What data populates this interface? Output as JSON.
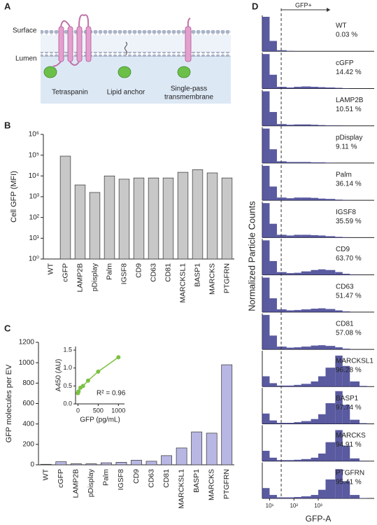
{
  "panels": [
    "A",
    "B",
    "C",
    "D"
  ],
  "diagram": {
    "surface": "Surface",
    "lumen": "Lumen",
    "labels": [
      "Tetraspanin",
      "Lipid anchor",
      "Single-pass",
      "transmembrane"
    ]
  },
  "chart_data": [
    {
      "type": "bar",
      "ylabel": "Cell  GFP  (MFI)",
      "categories": [
        "WT",
        "cGFP",
        "LAMP2B",
        "pDisplay",
        "Palm",
        "IGSF8",
        "CD9",
        "CD63",
        "CD81",
        "MARCKSL1",
        "BASP1",
        "MARCKS",
        "PTGFRN"
      ],
      "values": [
        1,
        90000,
        3700,
        1600,
        10000,
        7000,
        8000,
        8000,
        8000,
        15000,
        20000,
        14000,
        8000
      ],
      "color": "#c8c8c8",
      "yscale": "log",
      "ylim": [
        1,
        1000000
      ],
      "yticks": [
        {
          "value": 1,
          "label": "10⁰"
        },
        {
          "value": 10,
          "label": "10¹"
        },
        {
          "value": 100,
          "label": "10²"
        },
        {
          "value": 1000,
          "label": "10³"
        },
        {
          "value": 10000,
          "label": "10⁴"
        },
        {
          "value": 100000,
          "label": "10⁵"
        },
        {
          "value": 1000000,
          "label": "10⁶"
        }
      ]
    },
    {
      "type": "bar",
      "ylabel": "GFP molecules per EV",
      "categories": [
        "WT",
        "cGFP",
        "LAMP2B",
        "pDisplay",
        "Palm",
        "IGSF8",
        "CD9",
        "CD63",
        "CD81",
        "MARCKSL1",
        "BASP1",
        "MARCKS",
        "PTGFRN"
      ],
      "values": [
        5,
        30,
        10,
        10,
        20,
        25,
        45,
        35,
        90,
        165,
        322,
        310,
        980
      ],
      "color": "#b8b6e3",
      "ylim": [
        0,
        1200
      ],
      "yticks": [
        0,
        200,
        400,
        600,
        800,
        1000,
        1200
      ]
    },
    {
      "type": "line",
      "xlabel": "GFP (pg/mL)",
      "ylabel": "A450 (AU)",
      "annotation": "R² = 0.96",
      "x": [
        0,
        15,
        60,
        125,
        250,
        500,
        1000
      ],
      "values": [
        0.3,
        0.35,
        0.45,
        0.5,
        0.65,
        0.9,
        1.3
      ],
      "color": "#7cc142",
      "xlim": [
        -60,
        1150
      ],
      "ylim": [
        0,
        1.6
      ],
      "xticks": [
        0,
        500,
        1000
      ],
      "yticks": [
        {
          "value": 0,
          "label": "0.0"
        },
        {
          "value": 0.5,
          "label": "0.5"
        },
        {
          "value": 1,
          "label": "1.0"
        },
        {
          "value": 1.5,
          "label": "1.5"
        }
      ]
    },
    {
      "type": "histogram",
      "xlabel": "GFP-A",
      "ylabel": "Normalized Particle Counts",
      "gate": 30,
      "gate_label": "GFP+",
      "xscale": "log",
      "xlim": [
        5,
        200000
      ],
      "xticks": [
        {
          "value": 10,
          "label": "10¹"
        },
        {
          "value": 100,
          "label": "10²"
        },
        {
          "value": 1000,
          "label": "10³"
        }
      ],
      "ylim": [
        0,
        100
      ],
      "color": "#3d3d8f",
      "bins": [
        5,
        10,
        20,
        50,
        100,
        200,
        500,
        1000,
        2000,
        5000,
        10000,
        20000,
        50000,
        100000,
        200000
      ],
      "series": [
        {
          "name": "WT",
          "annotation": "0.03 %",
          "values": [
            100,
            30,
            3,
            1,
            0,
            0,
            0,
            0,
            0,
            0,
            0,
            0,
            0,
            0
          ]
        },
        {
          "name": "cGFP",
          "annotation": "14.42 %",
          "values": [
            100,
            40,
            5,
            3,
            5,
            6,
            5,
            4,
            3,
            2,
            1,
            0,
            0,
            0
          ]
        },
        {
          "name": "LAMP2B",
          "annotation": "10.51 %",
          "values": [
            100,
            40,
            5,
            3,
            4,
            4,
            3,
            2,
            1,
            1,
            0,
            0,
            0,
            0
          ]
        },
        {
          "name": "pDisplay",
          "annotation": "9.11 %",
          "values": [
            100,
            40,
            5,
            3,
            3,
            3,
            2,
            2,
            1,
            0,
            0,
            0,
            0,
            0
          ]
        },
        {
          "name": "Palm",
          "annotation": "36.14 %",
          "values": [
            100,
            40,
            8,
            6,
            8,
            8,
            7,
            5,
            4,
            2,
            1,
            0,
            0,
            0
          ]
        },
        {
          "name": "IGSF8",
          "annotation": "35.59 %",
          "values": [
            100,
            40,
            8,
            6,
            8,
            8,
            7,
            6,
            4,
            2,
            1,
            0,
            0,
            0
          ]
        },
        {
          "name": "CD9",
          "annotation": "63.70 %",
          "values": [
            100,
            40,
            8,
            5,
            6,
            10,
            14,
            16,
            14,
            8,
            3,
            1,
            0,
            0
          ]
        },
        {
          "name": "CD63",
          "annotation": "51.47 %",
          "values": [
            100,
            40,
            8,
            5,
            6,
            8,
            10,
            11,
            9,
            5,
            2,
            0,
            0,
            0
          ]
        },
        {
          "name": "CD81",
          "annotation": "57.08 %",
          "values": [
            100,
            40,
            8,
            5,
            6,
            8,
            11,
            12,
            10,
            6,
            2,
            0,
            0,
            0
          ]
        },
        {
          "name": "MARCKSL1",
          "annotation": "96.28 %",
          "values": [
            30,
            10,
            3,
            3,
            5,
            8,
            15,
            30,
            55,
            90,
            60,
            15,
            2,
            0
          ]
        },
        {
          "name": "BASP1",
          "annotation": "97.74 %",
          "values": [
            30,
            10,
            3,
            3,
            5,
            8,
            14,
            28,
            60,
            95,
            55,
            12,
            2,
            0
          ]
        },
        {
          "name": "MARCKS",
          "annotation": "94.91 %",
          "values": [
            30,
            10,
            3,
            3,
            4,
            6,
            10,
            22,
            55,
            90,
            45,
            8,
            1,
            0
          ]
        },
        {
          "name": "PTGFRN",
          "annotation": "95.41 %",
          "values": [
            30,
            10,
            3,
            3,
            4,
            6,
            10,
            25,
            55,
            85,
            50,
            10,
            1,
            0
          ]
        }
      ]
    }
  ]
}
